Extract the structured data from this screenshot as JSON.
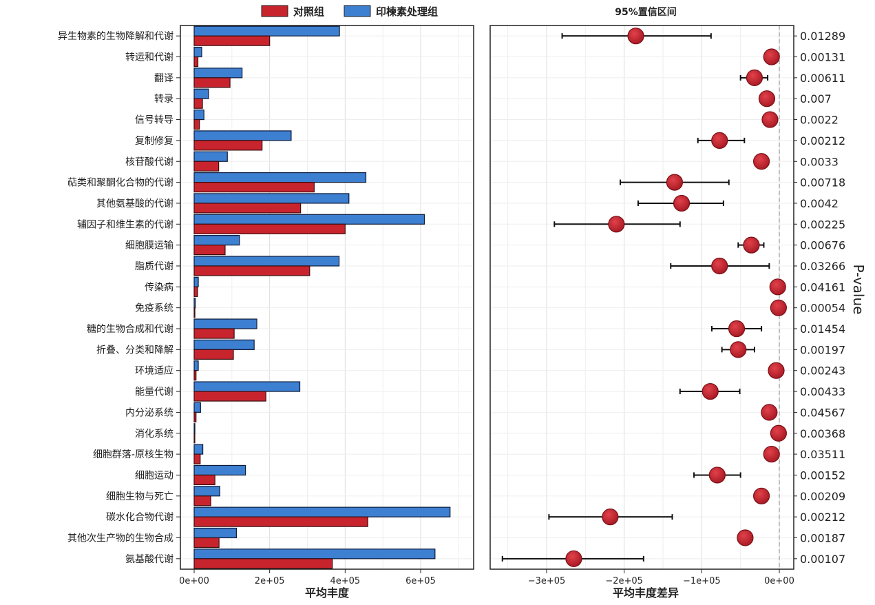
{
  "chart_data": [
    {
      "type": "bar",
      "orientation": "horizontal",
      "xlabel": "平均丰度",
      "xlim": [
        0,
        710000
      ],
      "x_ticks": [
        "0e+00",
        "2e+05",
        "4e+05",
        "6e+05"
      ],
      "x_tick_values": [
        0,
        200000,
        400000,
        600000
      ],
      "grid": true,
      "legend_position": "top",
      "categories": [
        "异生物素的生物降解和代谢",
        "转运和代谢",
        "翻译",
        "转录",
        "信号转导",
        "复制修复",
        "核苷酸代谢",
        "萜类和聚酮化合物的代谢",
        "其他氨基酸的代谢",
        "辅因子和维生素的代谢",
        "细胞膜运输",
        "脂质代谢",
        "传染病",
        "免疫系统",
        "糖的生物合成和代谢",
        "折叠、分类和降解",
        "环境适应",
        "能量代谢",
        "内分泌系统",
        "消化系统",
        "细胞群落-原核生物",
        "细胞运动",
        "细胞生物与死亡",
        "碳水化合物代谢",
        "其他次生产物的生物合成",
        "氨基酸代谢"
      ],
      "series": [
        {
          "name": "对照组",
          "color": "#c8242e",
          "values": [
            200000,
            10000,
            95000,
            22000,
            14000,
            180000,
            65000,
            318000,
            282000,
            400000,
            82000,
            306000,
            9000,
            2000,
            106000,
            104000,
            5000,
            190000,
            5000,
            1000,
            16000,
            55000,
            44000,
            460000,
            66000,
            366000
          ]
        },
        {
          "name": "印楝素处理组",
          "color": "#3d7fd1",
          "values": [
            385000,
            20000,
            127000,
            38000,
            26000,
            257000,
            88000,
            455000,
            410000,
            610000,
            120000,
            384000,
            11000,
            3000,
            166000,
            159000,
            11000,
            280000,
            17000,
            2000,
            23000,
            136000,
            68000,
            678000,
            112000,
            638000
          ]
        }
      ]
    },
    {
      "type": "scatter",
      "subtype": "errorbar",
      "title": "95%置信区间",
      "xlabel": "平均丰度差异",
      "ylabel_right": "P-value",
      "xlim": [
        -375000,
        15000
      ],
      "x_ticks": [
        "−3e+05",
        "−2e+05",
        "−1e+05",
        "0e+00"
      ],
      "x_tick_values": [
        -300000,
        -200000,
        -100000,
        0
      ],
      "grid": true,
      "marker_color": "#c8242e",
      "points": [
        {
          "mean": -185000,
          "lower": -280000,
          "upper": -88000,
          "p_value": "0.01289"
        },
        {
          "mean": -10000,
          "lower": -15000,
          "upper": -5000,
          "p_value": "0.00131"
        },
        {
          "mean": -32000,
          "lower": -50000,
          "upper": -15000,
          "p_value": "0.00611"
        },
        {
          "mean": -16000,
          "lower": -22000,
          "upper": -10000,
          "p_value": "0.007"
        },
        {
          "mean": -12000,
          "lower": -17000,
          "upper": -7000,
          "p_value": "0.0022"
        },
        {
          "mean": -77000,
          "lower": -105000,
          "upper": -45000,
          "p_value": "0.00212"
        },
        {
          "mean": -23000,
          "lower": -31000,
          "upper": -15000,
          "p_value": "0.0033"
        },
        {
          "mean": -135000,
          "lower": -205000,
          "upper": -65000,
          "p_value": "0.00718"
        },
        {
          "mean": -126000,
          "lower": -182000,
          "upper": -72000,
          "p_value": "0.0042"
        },
        {
          "mean": -210000,
          "lower": -290000,
          "upper": -128000,
          "p_value": "0.00225"
        },
        {
          "mean": -36000,
          "lower": -53000,
          "upper": -20000,
          "p_value": "0.00676"
        },
        {
          "mean": -77000,
          "lower": -140000,
          "upper": -13000,
          "p_value": "0.03266"
        },
        {
          "mean": -2000,
          "lower": -5000,
          "upper": 0,
          "p_value": "0.04161"
        },
        {
          "mean": -1000,
          "lower": -3000,
          "upper": 0,
          "p_value": "0.00054"
        },
        {
          "mean": -55000,
          "lower": -87000,
          "upper": -23000,
          "p_value": "0.01454"
        },
        {
          "mean": -53000,
          "lower": -74000,
          "upper": -32000,
          "p_value": "0.00197"
        },
        {
          "mean": -4000,
          "lower": -8000,
          "upper": 0,
          "p_value": "0.00243"
        },
        {
          "mean": -89000,
          "lower": -128000,
          "upper": -51000,
          "p_value": "0.00433"
        },
        {
          "mean": -13000,
          "lower": -20000,
          "upper": -6000,
          "p_value": "0.04567"
        },
        {
          "mean": -1000,
          "lower": -3000,
          "upper": 0,
          "p_value": "0.00368"
        },
        {
          "mean": -10000,
          "lower": -16000,
          "upper": -4000,
          "p_value": "0.03511"
        },
        {
          "mean": -80000,
          "lower": -110000,
          "upper": -50000,
          "p_value": "0.00152"
        },
        {
          "mean": -23000,
          "lower": -31000,
          "upper": -15000,
          "p_value": "0.00209"
        },
        {
          "mean": -218000,
          "lower": -297000,
          "upper": -138000,
          "p_value": "0.00212"
        },
        {
          "mean": -44000,
          "lower": -52000,
          "upper": -36000,
          "p_value": "0.00187"
        },
        {
          "mean": -265000,
          "lower": -357000,
          "upper": -175000,
          "p_value": "0.00107"
        }
      ]
    }
  ]
}
